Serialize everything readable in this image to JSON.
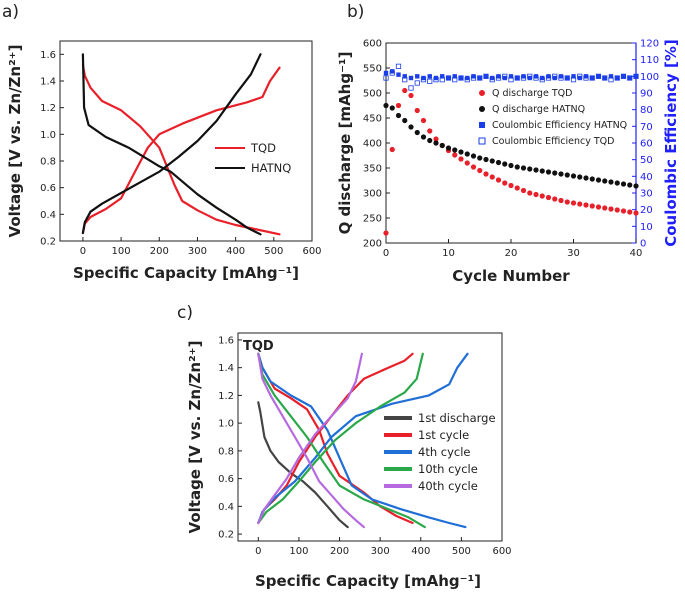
{
  "chart_data": [
    {
      "panel": "a)",
      "type": "line",
      "xlabel": "Specific Capacity [mAhg⁻¹]",
      "ylabel": "Voltage [V vs. Zn/Zn²⁺]",
      "xlim": [
        -60,
        600
      ],
      "ylim": [
        0.2,
        1.7
      ],
      "xticks": [
        0,
        100,
        200,
        300,
        400,
        500,
        600
      ],
      "yticks": [
        0.2,
        0.4,
        0.6,
        0.8,
        1.0,
        1.2,
        1.4,
        1.6
      ],
      "series": [
        {
          "name": "TQD",
          "color": "#e8202a",
          "curves": [
            [
              [
                0,
                1.52
              ],
              [
                5,
                1.44
              ],
              [
                20,
                1.35
              ],
              [
                50,
                1.25
              ],
              [
                100,
                1.18
              ],
              [
                150,
                1.06
              ],
              [
                200,
                0.9
              ],
              [
                240,
                0.62
              ],
              [
                260,
                0.5
              ],
              [
                300,
                0.43
              ],
              [
                350,
                0.36
              ],
              [
                400,
                0.32
              ],
              [
                450,
                0.29
              ],
              [
                515,
                0.25
              ]
            ],
            [
              [
                0,
                0.26
              ],
              [
                5,
                0.33
              ],
              [
                20,
                0.38
              ],
              [
                60,
                0.44
              ],
              [
                100,
                0.52
              ],
              [
                140,
                0.74
              ],
              [
                170,
                0.9
              ],
              [
                200,
                1.0
              ],
              [
                260,
                1.08
              ],
              [
                350,
                1.18
              ],
              [
                430,
                1.24
              ],
              [
                470,
                1.28
              ],
              [
                490,
                1.4
              ],
              [
                515,
                1.5
              ]
            ]
          ]
        },
        {
          "name": "HATNQ",
          "color": "#111111",
          "curves": [
            [
              [
                0,
                1.6
              ],
              [
                3,
                1.2
              ],
              [
                15,
                1.07
              ],
              [
                60,
                0.98
              ],
              [
                120,
                0.9
              ],
              [
                200,
                0.76
              ],
              [
                230,
                0.72
              ],
              [
                300,
                0.55
              ],
              [
                350,
                0.45
              ],
              [
                400,
                0.36
              ],
              [
                430,
                0.3
              ],
              [
                465,
                0.25
              ]
            ],
            [
              [
                0,
                0.26
              ],
              [
                5,
                0.34
              ],
              [
                20,
                0.42
              ],
              [
                50,
                0.48
              ],
              [
                100,
                0.56
              ],
              [
                150,
                0.64
              ],
              [
                200,
                0.72
              ],
              [
                250,
                0.83
              ],
              [
                300,
                0.95
              ],
              [
                350,
                1.1
              ],
              [
                400,
                1.3
              ],
              [
                440,
                1.45
              ],
              [
                465,
                1.6
              ]
            ]
          ]
        }
      ],
      "legend": {
        "position": "center-right",
        "entries": [
          "TQD",
          "HATNQ"
        ]
      }
    },
    {
      "panel": "b)",
      "type": "scatter",
      "xlabel": "Cycle Number",
      "ylabel": "Q discharge [mAhg⁻¹]",
      "y2label": "Coulombic Efficiency [%]",
      "xlim": [
        0,
        40
      ],
      "ylim": [
        200,
        600
      ],
      "y2lim": [
        0,
        120
      ],
      "xticks": [
        0,
        10,
        20,
        30,
        40
      ],
      "yticks": [
        200,
        250,
        300,
        350,
        400,
        450,
        500,
        550,
        600
      ],
      "y2ticks": [
        0,
        10,
        20,
        30,
        40,
        50,
        60,
        70,
        80,
        90,
        100,
        110,
        120
      ],
      "series": [
        {
          "name": "Q discharge TQD",
          "color": "#e8202a",
          "marker": "filled-circle",
          "axis": "left",
          "values": [
            220,
            387,
            475,
            505,
            495,
            465,
            445,
            424,
            408,
            395,
            385,
            376,
            368,
            360,
            352,
            345,
            338,
            332,
            326,
            320,
            315,
            310,
            305,
            300,
            297,
            294,
            291,
            288,
            285,
            282,
            280,
            278,
            276,
            274,
            272,
            270,
            268,
            266,
            264,
            262,
            260
          ]
        },
        {
          "name": "Q discharge HATNQ",
          "color": "#111111",
          "marker": "filled-circle",
          "axis": "left",
          "values": [
            475,
            470,
            455,
            445,
            432,
            421,
            412,
            405,
            400,
            395,
            390,
            386,
            382,
            378,
            374,
            370,
            367,
            364,
            361,
            358,
            355,
            352,
            350,
            348,
            346,
            344,
            342,
            340,
            338,
            336,
            334,
            332,
            330,
            328,
            326,
            324,
            322,
            320,
            318,
            316,
            314
          ]
        },
        {
          "name": "Coulombic Efficiency HATNQ",
          "color": "#1a3ee8",
          "marker": "filled-square",
          "axis": "right",
          "values": [
            102,
            103,
            101,
            100,
            99,
            100,
            99,
            100,
            99,
            100,
            99,
            100,
            99,
            99,
            100,
            99,
            100,
            99,
            100,
            99,
            100,
            99,
            100,
            99,
            100,
            99,
            100,
            99,
            100,
            99,
            100,
            99,
            100,
            99,
            100,
            99,
            100,
            99,
            100,
            99,
            100
          ]
        },
        {
          "name": "Coulombic Efficiency TQD",
          "color": "#1a3ee8",
          "marker": "open-square",
          "axis": "right",
          "values": [
            99,
            102,
            106,
            98,
            93,
            96,
            98,
            97,
            98,
            98,
            99,
            98,
            99,
            98,
            99,
            99,
            100,
            98,
            99,
            100,
            98,
            99,
            99,
            100,
            99,
            98,
            99,
            100,
            99,
            99,
            98,
            100,
            99,
            99,
            100,
            99,
            98,
            99,
            100,
            99,
            100
          ]
        }
      ],
      "legend": {
        "position": "center-right",
        "entries": [
          "Q discharge TQD",
          "Q discharge HATNQ",
          "Coulombic Efficiency HATNQ",
          "Coulombic Efficiency TQD"
        ]
      }
    },
    {
      "panel": "c)",
      "type": "line",
      "annotation": "TQD",
      "xlabel": "Specific Capacity [mAhg⁻¹]",
      "ylabel": "Voltage [V vs. Zn/Zn²⁺]",
      "xlim": [
        -50,
        600
      ],
      "ylim": [
        0.15,
        1.65
      ],
      "xticks": [
        0,
        100,
        200,
        300,
        400,
        500,
        600
      ],
      "yticks": [
        0.2,
        0.4,
        0.6,
        0.8,
        1.0,
        1.2,
        1.4,
        1.6
      ],
      "series": [
        {
          "name": "1st discharge",
          "color": "#444444",
          "curves": [
            [
              [
                0,
                1.15
              ],
              [
                5,
                1.08
              ],
              [
                15,
                0.9
              ],
              [
                30,
                0.8
              ],
              [
                50,
                0.72
              ],
              [
                80,
                0.64
              ],
              [
                110,
                0.58
              ],
              [
                140,
                0.5
              ],
              [
                170,
                0.4
              ],
              [
                200,
                0.3
              ],
              [
                220,
                0.25
              ]
            ]
          ]
        },
        {
          "name": "1st cycle",
          "color": "#e8202a",
          "curves": [
            [
              [
                0,
                1.5
              ],
              [
                10,
                1.4
              ],
              [
                40,
                1.25
              ],
              [
                80,
                1.18
              ],
              [
                120,
                1.1
              ],
              [
                150,
                0.95
              ],
              [
                170,
                0.78
              ],
              [
                200,
                0.62
              ],
              [
                260,
                0.5
              ],
              [
                300,
                0.4
              ],
              [
                340,
                0.33
              ],
              [
                380,
                0.28
              ]
            ],
            [
              [
                0,
                0.28
              ],
              [
                15,
                0.38
              ],
              [
                40,
                0.45
              ],
              [
                70,
                0.55
              ],
              [
                100,
                0.72
              ],
              [
                140,
                0.9
              ],
              [
                180,
                1.05
              ],
              [
                220,
                1.2
              ],
              [
                260,
                1.32
              ],
              [
                320,
                1.4
              ],
              [
                360,
                1.45
              ],
              [
                380,
                1.5
              ]
            ]
          ]
        },
        {
          "name": "4th cycle",
          "color": "#1f6fd6",
          "curves": [
            [
              [
                0,
                1.5
              ],
              [
                10,
                1.4
              ],
              [
                30,
                1.3
              ],
              [
                80,
                1.2
              ],
              [
                130,
                1.12
              ],
              [
                170,
                0.95
              ],
              [
                200,
                0.75
              ],
              [
                230,
                0.55
              ],
              [
                280,
                0.45
              ],
              [
                350,
                0.38
              ],
              [
                420,
                0.32
              ],
              [
                470,
                0.28
              ],
              [
                510,
                0.25
              ]
            ],
            [
              [
                0,
                0.28
              ],
              [
                10,
                0.36
              ],
              [
                40,
                0.46
              ],
              [
                90,
                0.58
              ],
              [
                140,
                0.75
              ],
              [
                180,
                0.9
              ],
              [
                240,
                1.05
              ],
              [
                330,
                1.14
              ],
              [
                420,
                1.2
              ],
              [
                470,
                1.28
              ],
              [
                490,
                1.4
              ],
              [
                515,
                1.5
              ]
            ]
          ]
        },
        {
          "name": "10th cycle",
          "color": "#2aa84a",
          "curves": [
            [
              [
                0,
                1.5
              ],
              [
                10,
                1.35
              ],
              [
                40,
                1.2
              ],
              [
                80,
                1.05
              ],
              [
                120,
                0.9
              ],
              [
                160,
                0.72
              ],
              [
                200,
                0.55
              ],
              [
                260,
                0.45
              ],
              [
                320,
                0.38
              ],
              [
                370,
                0.32
              ],
              [
                410,
                0.25
              ]
            ],
            [
              [
                0,
                0.28
              ],
              [
                20,
                0.36
              ],
              [
                60,
                0.45
              ],
              [
                100,
                0.58
              ],
              [
                140,
                0.72
              ],
              [
                190,
                0.88
              ],
              [
                240,
                1.0
              ],
              [
                300,
                1.12
              ],
              [
                360,
                1.22
              ],
              [
                390,
                1.32
              ],
              [
                405,
                1.5
              ]
            ]
          ]
        },
        {
          "name": "40th cycle",
          "color": "#b66ae0",
          "curves": [
            [
              [
                0,
                1.5
              ],
              [
                10,
                1.32
              ],
              [
                30,
                1.2
              ],
              [
                60,
                1.05
              ],
              [
                90,
                0.9
              ],
              [
                120,
                0.75
              ],
              [
                150,
                0.58
              ],
              [
                180,
                0.48
              ],
              [
                210,
                0.38
              ],
              [
                240,
                0.3
              ],
              [
                260,
                0.25
              ]
            ],
            [
              [
                0,
                0.28
              ],
              [
                15,
                0.38
              ],
              [
                40,
                0.48
              ],
              [
                70,
                0.6
              ],
              [
                100,
                0.75
              ],
              [
                140,
                0.92
              ],
              [
                180,
                1.05
              ],
              [
                220,
                1.18
              ],
              [
                240,
                1.3
              ],
              [
                255,
                1.5
              ]
            ]
          ]
        }
      ],
      "legend": {
        "position": "center-right",
        "entries": [
          "1st discharge",
          "1st cycle",
          "4th cycle",
          "10th cycle",
          "40th cycle"
        ]
      }
    }
  ]
}
